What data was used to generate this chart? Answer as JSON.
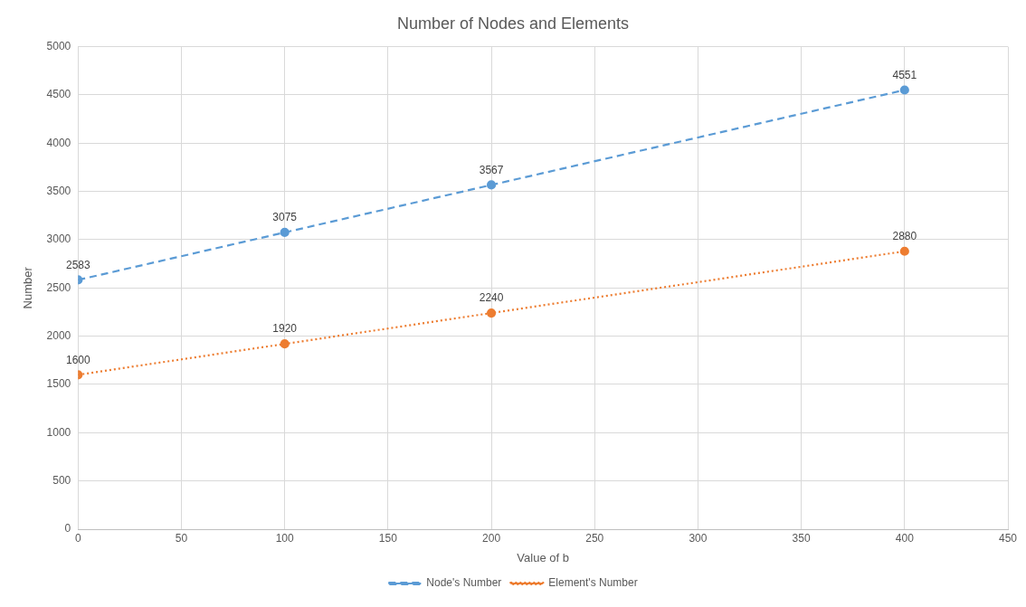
{
  "chart_data": {
    "type": "line",
    "title": "Number of Nodes and Elements",
    "xlabel": "Value of b",
    "ylabel": "Number",
    "x": [
      0,
      100,
      200,
      400
    ],
    "series": [
      {
        "name": "Node's Number",
        "color": "#5b9bd5",
        "line_style": "dashed",
        "values": [
          2583,
          3075,
          3567,
          4551
        ]
      },
      {
        "name": "Element's Number",
        "color": "#ed7d31",
        "line_style": "dotted",
        "values": [
          1600,
          1920,
          2240,
          2880
        ]
      }
    ],
    "xlim": [
      0,
      450
    ],
    "xticks": [
      0,
      50,
      100,
      150,
      200,
      250,
      300,
      350,
      400,
      450
    ],
    "ylim": [
      0,
      5000
    ],
    "yticks": [
      0,
      500,
      1000,
      1500,
      2000,
      2500,
      3000,
      3500,
      4000,
      4500,
      5000
    ],
    "grid": true,
    "legend": "bottom",
    "marker": "circle",
    "data_labels": true
  }
}
